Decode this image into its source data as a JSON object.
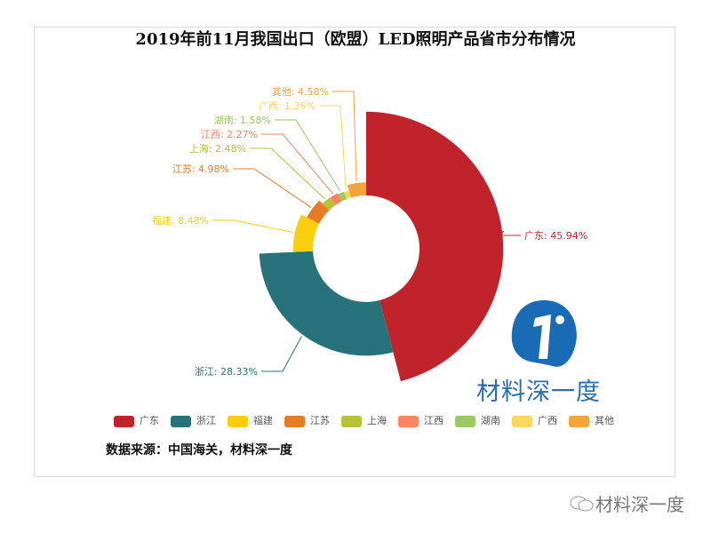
{
  "chart_data": {
    "type": "pie",
    "variant": "rose-donut",
    "title": "2019年前11月我国出口（欧盟）LED照明产品省市分布情况",
    "categories": [
      "广东",
      "浙江",
      "福建",
      "江苏",
      "上海",
      "江西",
      "湖南",
      "广西",
      "其他"
    ],
    "values": [
      45.94,
      28.33,
      8.48,
      4.98,
      2.48,
      2.27,
      1.58,
      1.36,
      4.58
    ],
    "unit": "%",
    "labels": [
      "广东: 45.94%",
      "浙江: 28.33%",
      "福建: 8.48%",
      "江苏: 4.98%",
      "上海: 2.48%",
      "江西: 2.27%",
      "湖南: 1.58%",
      "广西: 1.36%",
      "其他: 4.58%"
    ],
    "colors": [
      "#c1232b",
      "#27727b",
      "#fcce10",
      "#e87c25",
      "#b5c334",
      "#fe8463",
      "#9bca63",
      "#fad860",
      "#f3a43b"
    ],
    "legend_position": "bottom"
  },
  "source": "数据来源：中国海关，材料深一度",
  "logo_text": "材料深一度",
  "watermark": "材料深一度"
}
